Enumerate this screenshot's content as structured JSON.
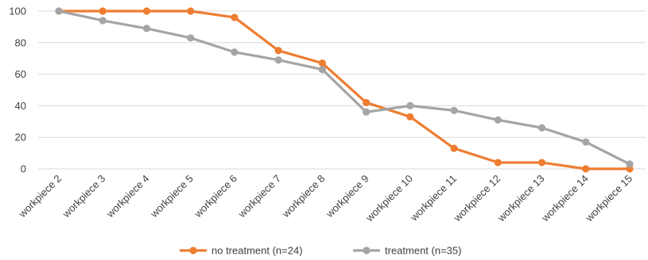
{
  "chart_data": {
    "type": "line",
    "title": "",
    "xlabel": "",
    "ylabel": "",
    "categories": [
      "workpiece 2",
      "workpiece 3",
      "workpiece 4",
      "workpiece 5",
      "workpiece 6",
      "workpiece 7",
      "workpiece 8",
      "workpiece 9",
      "workpiece 10",
      "workpiece 11",
      "workpiece 12",
      "workpiece 13",
      "workpiece 14",
      "workpiece 15"
    ],
    "ylim": [
      0,
      100
    ],
    "yticks": [
      0,
      20,
      40,
      60,
      80,
      100
    ],
    "grid": true,
    "legend_position": "bottom",
    "series": [
      {
        "name": "no treatment (n=24)",
        "color": "#ED7D31",
        "values": [
          100,
          100,
          100,
          100,
          96,
          75,
          67,
          42,
          33,
          13,
          4,
          4,
          0,
          0
        ]
      },
      {
        "name": "treatment (n=35)",
        "color": "#A5A5A5",
        "values": [
          100,
          94,
          89,
          83,
          74,
          69,
          63,
          36,
          40,
          37,
          31,
          26,
          17,
          3
        ]
      }
    ]
  }
}
